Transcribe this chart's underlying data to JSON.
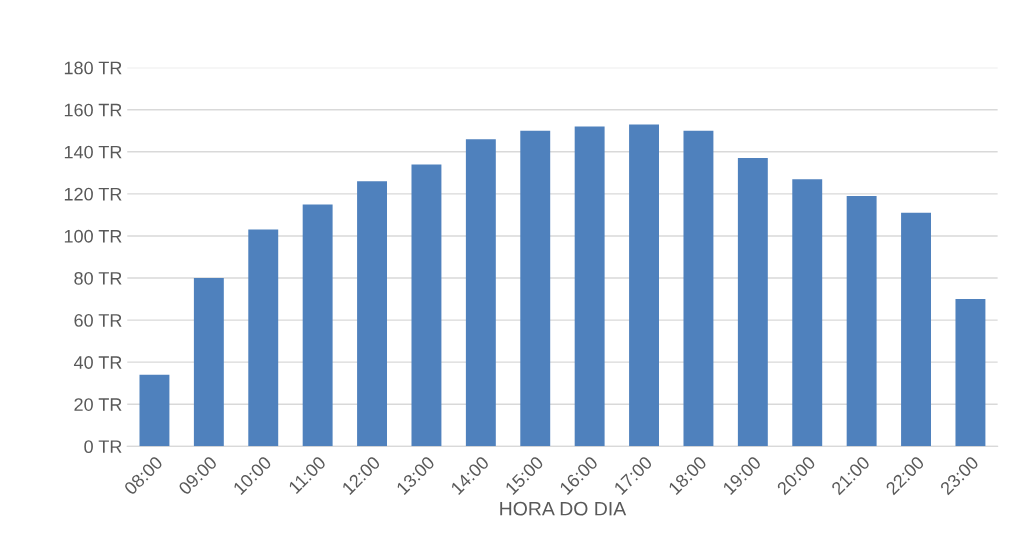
{
  "chart_data": {
    "type": "bar",
    "xlabel": "HORA DO DIA",
    "categories": [
      "08:00",
      "09:00",
      "10:00",
      "11:00",
      "12:00",
      "13:00",
      "14:00",
      "15:00",
      "16:00",
      "17:00",
      "18:00",
      "19:00",
      "20:00",
      "21:00",
      "22:00",
      "23:00"
    ],
    "values": [
      34,
      80,
      103,
      115,
      126,
      134,
      146,
      150,
      152,
      153,
      150,
      137,
      127,
      119,
      111,
      70
    ],
    "color": "#4f81bd",
    "ylim": [
      0,
      180
    ],
    "yticks": [
      {
        "value": 0,
        "label": "0 TR"
      },
      {
        "value": 20,
        "label": "20 TR"
      },
      {
        "value": 40,
        "label": "40 TR"
      },
      {
        "value": 60,
        "label": "60 TR"
      },
      {
        "value": 80,
        "label": "80 TR"
      },
      {
        "value": 100,
        "label": "100 TR"
      },
      {
        "value": 120,
        "label": "120 TR"
      },
      {
        "value": 140,
        "label": "140 TR"
      },
      {
        "value": 160,
        "label": "160 TR"
      },
      {
        "value": 180,
        "label": "180 TR"
      }
    ],
    "grid": "y"
  }
}
